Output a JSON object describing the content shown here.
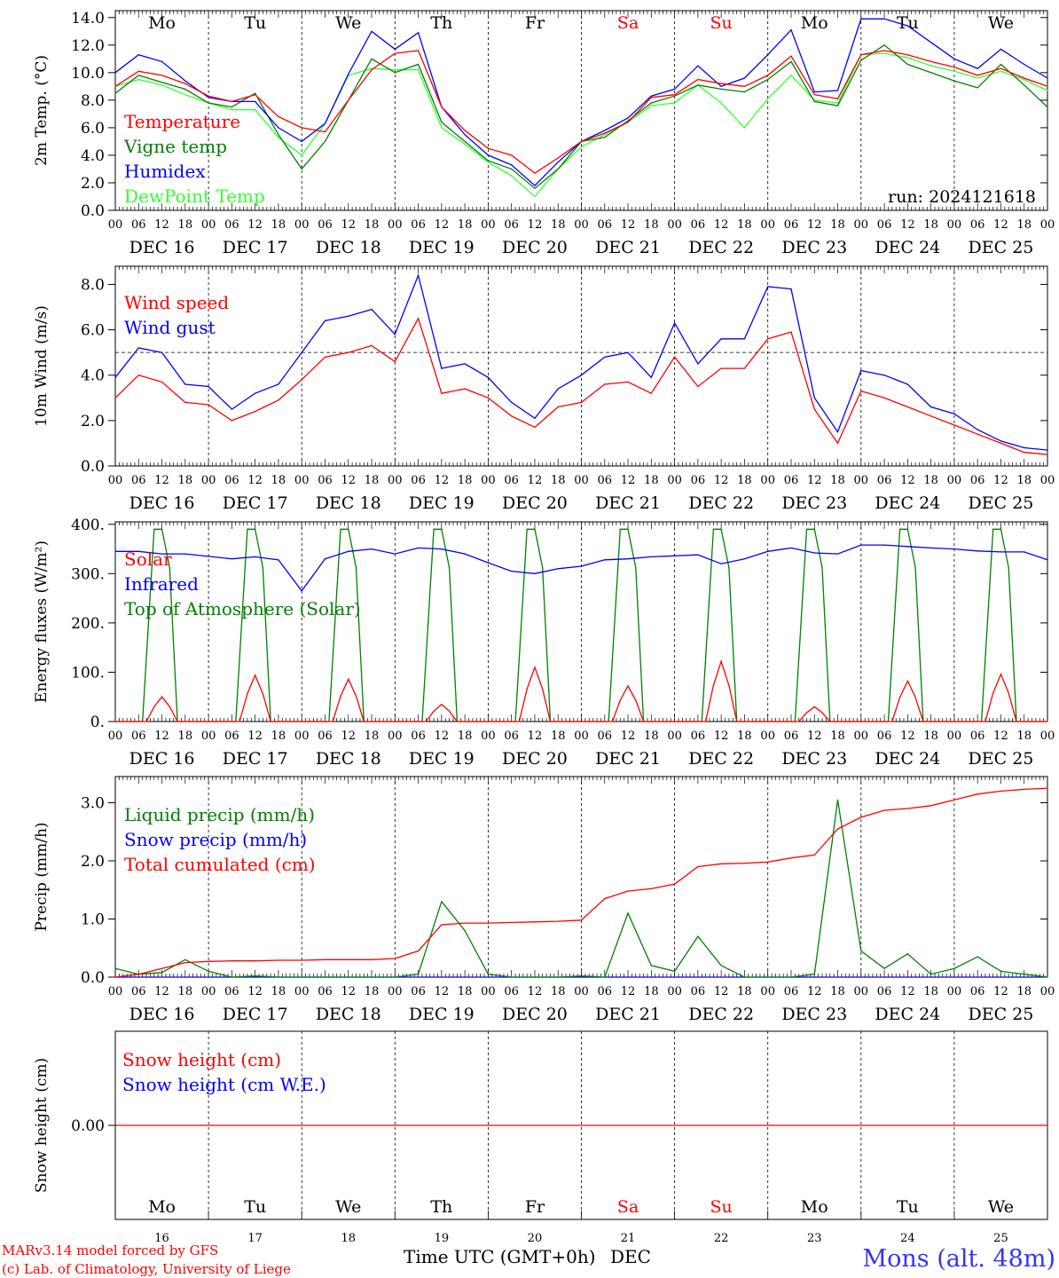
{
  "meta": {
    "run": "run: 2024121618",
    "model": "MARv3.14 model forced by GFS",
    "credit": "(c) Lab. of Climatology, University of Liege",
    "location": "Mons (alt. 48m)",
    "xlabel": "Time UTC (GMT+0h)",
    "month": "DEC"
  },
  "days": {
    "names": [
      "Mo",
      "Tu",
      "We",
      "Th",
      "Fr",
      "Sa",
      "Su",
      "Mo",
      "Tu",
      "We"
    ],
    "weekend": [
      false,
      false,
      false,
      false,
      false,
      true,
      true,
      false,
      false,
      false
    ],
    "dates": [
      "DEC 16",
      "DEC 17",
      "DEC 18",
      "DEC 19",
      "DEC 20",
      "DEC 21",
      "DEC 22",
      "DEC 23",
      "DEC 24",
      "DEC 25"
    ],
    "numbers": [
      "16",
      "17",
      "18",
      "19",
      "20",
      "21",
      "22",
      "23",
      "24",
      "25"
    ],
    "hour_ticks": [
      "00",
      "06",
      "12",
      "18"
    ],
    "end_tick": "00"
  },
  "colors": {
    "red": "#ff0000",
    "darkgreen": "#008000",
    "blue": "#0000ff",
    "lightgreen": "#33ff33",
    "weekend": "#ff0000",
    "location": "#3333ff"
  },
  "chart_data": [
    {
      "type": "line",
      "ylabel": "2m Temp. (°C)",
      "ylim": [
        0,
        14.5
      ],
      "yticks": [
        "0.0",
        "2.0",
        "4.0",
        "6.0",
        "8.0",
        "10.0",
        "12.0",
        "14.0"
      ],
      "ytick_values": [
        0,
        2,
        4,
        6,
        8,
        10,
        12,
        14
      ],
      "x_hours": [
        0,
        6,
        12,
        18,
        24,
        30,
        36,
        42,
        48,
        54,
        60,
        66,
        72,
        78,
        84,
        90,
        96,
        102,
        108,
        114,
        120,
        126,
        132,
        138,
        144,
        150,
        156,
        162,
        168,
        174,
        180,
        186,
        192,
        198,
        204,
        210,
        216,
        222,
        228,
        234,
        240
      ],
      "series": [
        {
          "name": "Temperature",
          "color": "red",
          "values": [
            9.0,
            10.1,
            9.8,
            9.2,
            8.3,
            7.9,
            8.4,
            6.8,
            6.0,
            5.7,
            8.0,
            10.2,
            11.4,
            11.6,
            7.5,
            5.8,
            4.5,
            4.0,
            2.7,
            3.8,
            5.0,
            5.6,
            6.4,
            8.2,
            8.4,
            9.5,
            9.2,
            9.0,
            9.8,
            11.2,
            8.4,
            8.1,
            11.3,
            11.6,
            11.3,
            10.8,
            10.4,
            9.8,
            10.3,
            9.6,
            9.0
          ]
        },
        {
          "name": "Vigne temp",
          "color": "darkgreen",
          "values": [
            8.5,
            9.8,
            9.3,
            8.8,
            7.8,
            7.5,
            8.5,
            5.5,
            3.0,
            5.0,
            8.0,
            11.0,
            10.0,
            10.6,
            6.4,
            5.0,
            3.6,
            3.0,
            1.6,
            3.0,
            5.0,
            5.3,
            6.5,
            7.8,
            8.3,
            9.1,
            8.8,
            8.6,
            9.5,
            10.8,
            7.9,
            7.6,
            10.9,
            12.0,
            10.6,
            10.0,
            9.4,
            8.9,
            10.6,
            9.1,
            7.5
          ]
        },
        {
          "name": "Humidex",
          "color": "blue",
          "values": [
            10.0,
            11.3,
            10.8,
            9.4,
            8.2,
            7.9,
            7.9,
            6.0,
            5.0,
            6.3,
            9.9,
            13.0,
            11.7,
            12.9,
            7.5,
            5.5,
            4.0,
            3.3,
            1.8,
            3.5,
            5.0,
            5.8,
            6.7,
            8.3,
            8.8,
            10.5,
            9.0,
            9.6,
            11.3,
            13.1,
            8.6,
            8.7,
            13.9,
            13.9,
            13.4,
            12.2,
            11.0,
            10.3,
            11.7,
            10.6,
            9.6
          ]
        },
        {
          "name": "DewPoint Temp",
          "color": "lightgreen",
          "values": [
            9.0,
            9.5,
            9.1,
            8.4,
            7.8,
            7.3,
            7.3,
            5.3,
            4.0,
            6.3,
            9.8,
            10.3,
            10.2,
            10.2,
            6.0,
            4.8,
            3.5,
            2.5,
            1.0,
            3.0,
            4.6,
            5.5,
            6.4,
            7.6,
            7.8,
            9.1,
            7.8,
            6.0,
            8.1,
            9.8,
            8.0,
            7.8,
            11.3,
            11.4,
            11.1,
            10.5,
            10.1,
            9.6,
            10.1,
            9.5,
            8.7
          ]
        }
      ]
    },
    {
      "type": "line",
      "ylabel": "10m Wind (m/s)",
      "ylim": [
        0,
        8.8
      ],
      "yticks": [
        "0.0",
        "2.0",
        "4.0",
        "6.0",
        "8.0"
      ],
      "ytick_values": [
        0,
        2,
        4,
        6,
        8
      ],
      "reference_line": 5.0,
      "x_hours": [
        0,
        6,
        12,
        18,
        24,
        30,
        36,
        42,
        48,
        54,
        60,
        66,
        72,
        78,
        84,
        90,
        96,
        102,
        108,
        114,
        120,
        126,
        132,
        138,
        144,
        150,
        156,
        162,
        168,
        174,
        180,
        186,
        192,
        198,
        204,
        210,
        216,
        222,
        228,
        234,
        240
      ],
      "series": [
        {
          "name": "Wind speed",
          "color": "red",
          "values": [
            3.0,
            4.0,
            3.7,
            2.8,
            2.7,
            2.0,
            2.4,
            2.9,
            3.8,
            4.8,
            5.0,
            5.3,
            4.6,
            6.5,
            3.2,
            3.4,
            3.0,
            2.2,
            1.7,
            2.6,
            2.8,
            3.6,
            3.7,
            3.2,
            4.8,
            3.5,
            4.3,
            4.3,
            5.6,
            5.9,
            2.5,
            1.0,
            3.3,
            3.0,
            2.6,
            2.2,
            1.8,
            1.4,
            1.0,
            0.6,
            0.5
          ]
        },
        {
          "name": "Wind gust",
          "color": "blue",
          "values": [
            3.9,
            5.2,
            5.0,
            3.6,
            3.5,
            2.5,
            3.2,
            3.6,
            5.0,
            6.4,
            6.6,
            6.9,
            5.8,
            8.4,
            4.3,
            4.5,
            3.9,
            2.8,
            2.1,
            3.4,
            4.0,
            4.8,
            5.0,
            3.9,
            6.3,
            4.5,
            5.6,
            5.6,
            7.9,
            7.8,
            3.0,
            1.5,
            4.2,
            4.0,
            3.6,
            2.6,
            2.3,
            1.6,
            1.1,
            0.8,
            0.7
          ]
        }
      ]
    },
    {
      "type": "line",
      "ylabel": "Energy fluxes (W/m²)",
      "ylim": [
        0,
        405
      ],
      "yticks": [
        "0.",
        "100.",
        "200.",
        "300.",
        "400."
      ],
      "ytick_values": [
        0,
        100,
        200,
        300,
        400
      ],
      "solar_peaks": [
        50,
        94,
        86,
        35,
        110,
        72,
        122,
        30,
        82,
        96
      ],
      "toa_peak": 390,
      "infrared_hours": [
        0,
        6,
        12,
        18,
        24,
        30,
        36,
        42,
        48,
        54,
        60,
        66,
        72,
        78,
        84,
        90,
        96,
        102,
        108,
        114,
        120,
        126,
        132,
        138,
        144,
        150,
        156,
        162,
        168,
        174,
        180,
        186,
        192,
        198,
        204,
        210,
        216,
        222,
        228,
        234,
        240
      ],
      "series": [
        {
          "name": "Solar",
          "color": "red"
        },
        {
          "name": "Infrared",
          "color": "blue",
          "values": [
            345,
            345,
            340,
            340,
            335,
            330,
            334,
            328,
            265,
            330,
            345,
            350,
            340,
            352,
            350,
            340,
            322,
            305,
            300,
            310,
            315,
            328,
            330,
            334,
            336,
            338,
            320,
            330,
            345,
            352,
            342,
            340,
            358,
            358,
            355,
            352,
            350,
            346,
            344,
            344,
            328
          ]
        },
        {
          "name": "Top of Atmosphere (Solar)",
          "color": "darkgreen"
        }
      ]
    },
    {
      "type": "line",
      "ylabel": "Precip (mm/h)",
      "ylim": [
        0,
        3.45
      ],
      "yticks": [
        "0.0",
        "1.0",
        "2.0",
        "3.0"
      ],
      "ytick_values": [
        0,
        1,
        2,
        3
      ],
      "x_hours": [
        0,
        6,
        12,
        18,
        24,
        30,
        36,
        42,
        48,
        54,
        60,
        66,
        72,
        78,
        84,
        90,
        96,
        102,
        108,
        114,
        120,
        126,
        132,
        138,
        144,
        150,
        156,
        162,
        168,
        174,
        180,
        186,
        192,
        198,
        204,
        210,
        216,
        222,
        228,
        234,
        240
      ],
      "series": [
        {
          "name": "Liquid precip (mm/h)",
          "color": "darkgreen",
          "values": [
            0.15,
            0.05,
            0.08,
            0.3,
            0.1,
            0.0,
            0.02,
            0.0,
            0.0,
            0.0,
            0.0,
            0.0,
            0.0,
            0.05,
            1.3,
            0.8,
            0.05,
            0.0,
            0.0,
            0.0,
            0.02,
            0.0,
            1.1,
            0.2,
            0.1,
            0.7,
            0.2,
            0.0,
            0.0,
            0.0,
            0.05,
            3.05,
            0.45,
            0.15,
            0.4,
            0.05,
            0.15,
            0.35,
            0.1,
            0.05,
            0.0
          ]
        },
        {
          "name": "Snow precip (mm/h)",
          "color": "blue",
          "values": [
            0,
            0,
            0,
            0,
            0,
            0,
            0,
            0,
            0,
            0,
            0,
            0,
            0,
            0,
            0,
            0,
            0,
            0,
            0,
            0,
            0,
            0,
            0,
            0,
            0,
            0,
            0,
            0,
            0,
            0,
            0,
            0,
            0,
            0,
            0,
            0,
            0,
            0,
            0,
            0,
            0
          ]
        },
        {
          "name": "Total cumulated (cm)",
          "color": "red",
          "values": [
            0.0,
            0.05,
            0.15,
            0.25,
            0.27,
            0.28,
            0.28,
            0.29,
            0.29,
            0.3,
            0.3,
            0.3,
            0.32,
            0.45,
            0.9,
            0.93,
            0.93,
            0.94,
            0.95,
            0.96,
            0.98,
            1.35,
            1.48,
            1.52,
            1.6,
            1.9,
            1.95,
            1.96,
            1.98,
            2.05,
            2.1,
            2.55,
            2.75,
            2.87,
            2.9,
            2.95,
            3.05,
            3.15,
            3.2,
            3.23,
            3.25
          ]
        }
      ]
    },
    {
      "type": "line",
      "ylabel": "Snow height (cm)",
      "yticks": [
        "0.00"
      ],
      "ytick_values": [
        0
      ],
      "series": [
        {
          "name": "Snow height (cm)",
          "color": "red",
          "values": [
            0,
            0
          ]
        },
        {
          "name": "Snow height (cm W.E.)",
          "color": "blue",
          "values": [
            0,
            0
          ]
        }
      ]
    }
  ]
}
